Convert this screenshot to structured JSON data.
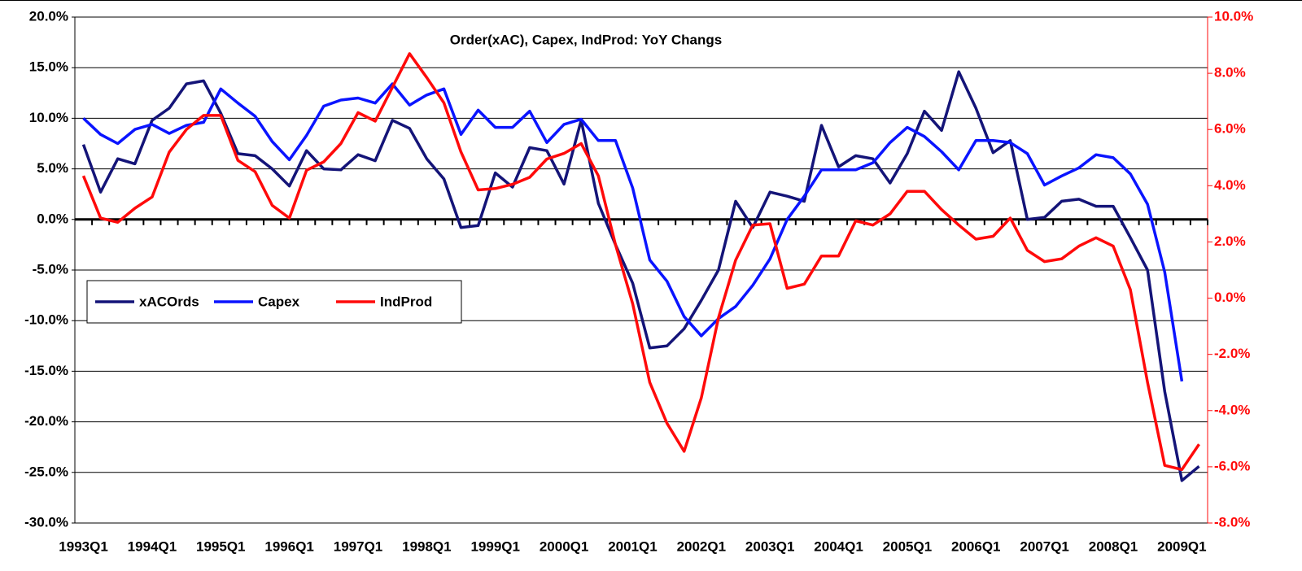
{
  "chart_data": {
    "type": "line",
    "title": "Order(xAC), Capex, IndProd: YoY Changs",
    "categories": [
      "1993Q1",
      null,
      null,
      null,
      "1994Q1",
      null,
      null,
      null,
      "1995Q1",
      null,
      null,
      null,
      "1996Q1",
      null,
      null,
      null,
      "1997Q1",
      null,
      null,
      null,
      "1998Q1",
      null,
      null,
      null,
      "1999Q1",
      null,
      null,
      null,
      "2000Q1",
      null,
      null,
      null,
      "2001Q1",
      null,
      null,
      null,
      "2002Q1",
      null,
      null,
      null,
      "2003Q1",
      null,
      null,
      null,
      "2004Q1",
      null,
      null,
      null,
      "2005Q1",
      null,
      null,
      null,
      "2006Q1",
      null,
      null,
      null,
      "2007Q1",
      null,
      null,
      null,
      "2008Q1",
      null,
      null,
      null,
      "2009Q1",
      null
    ],
    "series": [
      {
        "name": "xACOrds",
        "color": "#141478",
        "values": [
          7.4,
          2.7,
          6.0,
          5.5,
          9.8,
          11.0,
          13.4,
          13.7,
          10.5,
          6.5,
          6.3,
          5.0,
          3.3,
          6.8,
          5.0,
          4.9,
          6.4,
          5.8,
          9.8,
          9.0,
          6.0,
          4.0,
          -0.8,
          -0.6,
          4.6,
          3.2,
          7.1,
          6.8,
          3.5,
          9.8,
          1.6,
          -2.5,
          -6.3,
          -12.7,
          -12.5,
          -10.8,
          -8.0,
          -5.0,
          1.8,
          -0.8,
          2.7,
          2.3,
          1.8,
          9.3,
          5.2,
          6.3,
          6.0,
          3.6,
          6.5,
          10.7,
          8.8,
          14.6,
          11.0,
          6.6,
          7.8,
          0.0,
          0.2,
          1.8,
          2.0,
          1.3,
          1.3,
          -1.8,
          -5.0,
          -17.0,
          -25.8,
          -24.4
        ]
      },
      {
        "name": "Capex",
        "color": "#0a14ff",
        "values": [
          10.0,
          8.4,
          7.5,
          8.9,
          9.4,
          8.5,
          9.3,
          9.6,
          12.9,
          11.5,
          10.2,
          7.7,
          5.9,
          8.3,
          11.2,
          11.8,
          12.0,
          11.5,
          13.4,
          11.3,
          12.3,
          12.9,
          8.4,
          10.8,
          9.1,
          9.1,
          10.7,
          7.6,
          9.4,
          9.9,
          7.8,
          7.8,
          3.1,
          -4.0,
          -6.1,
          -9.6,
          -11.5,
          -9.8,
          -8.6,
          -6.5,
          -3.9,
          0.0,
          2.3,
          4.9,
          4.9,
          4.9,
          5.6,
          7.6,
          9.1,
          8.2,
          6.7,
          4.9,
          7.8,
          7.8,
          7.6,
          6.5,
          3.4,
          4.3,
          5.1,
          6.4,
          6.1,
          4.5,
          1.5,
          -5.2,
          -16.0,
          null
        ]
      },
      {
        "name": "IndProd",
        "color": "#ff0a0a",
        "axis": "y2",
        "values": [
          4.35,
          2.85,
          2.7,
          3.2,
          3.6,
          5.2,
          6.0,
          6.5,
          6.5,
          4.9,
          4.5,
          3.3,
          2.85,
          4.55,
          4.85,
          5.5,
          6.6,
          6.3,
          7.5,
          8.7,
          7.85,
          6.95,
          5.2,
          3.85,
          3.9,
          4.05,
          4.3,
          4.95,
          5.15,
          5.5,
          4.35,
          1.9,
          -0.2,
          -3.0,
          -4.45,
          -5.45,
          -3.55,
          -0.7,
          1.35,
          2.6,
          2.65,
          0.35,
          0.5,
          1.5,
          1.5,
          2.75,
          2.6,
          3.0,
          3.8,
          3.8,
          3.15,
          2.6,
          2.1,
          2.2,
          2.85,
          1.7,
          1.3,
          1.4,
          1.85,
          2.15,
          1.85,
          0.3,
          -3.0,
          -5.95,
          -6.1,
          -5.2
        ]
      }
    ],
    "ylim": [
      -30,
      20
    ],
    "yticks": [
      {
        "value": -30,
        "label": "-30.0%"
      },
      {
        "value": -25,
        "label": "-25.0%"
      },
      {
        "value": -20,
        "label": "-20.0%"
      },
      {
        "value": -15,
        "label": "-15.0%"
      },
      {
        "value": -10,
        "label": "-10.0%"
      },
      {
        "value": -5,
        "label": "-5.0%"
      },
      {
        "value": 0,
        "label": "0.0%"
      },
      {
        "value": 5,
        "label": "5.0%"
      },
      {
        "value": 10,
        "label": "10.0%"
      },
      {
        "value": 15,
        "label": "15.0%"
      },
      {
        "value": 20,
        "label": "20.0%"
      }
    ],
    "y2lim": [
      -8,
      10
    ],
    "y2ticks": [
      {
        "value": -8,
        "label": "-8.0%"
      },
      {
        "value": -6,
        "label": "-6.0%"
      },
      {
        "value": -4,
        "label": "-4.0%"
      },
      {
        "value": -2,
        "label": "-2.0%"
      },
      {
        "value": 0,
        "label": "0.0%"
      },
      {
        "value": 2,
        "label": "2.0%"
      },
      {
        "value": 4,
        "label": "4.0%"
      },
      {
        "value": 6,
        "label": "6.0%"
      },
      {
        "value": 8,
        "label": "8.0%"
      },
      {
        "value": 10,
        "label": "10.0%"
      }
    ],
    "y2color": "#ff0a0a",
    "grid": true,
    "legend": "left"
  }
}
